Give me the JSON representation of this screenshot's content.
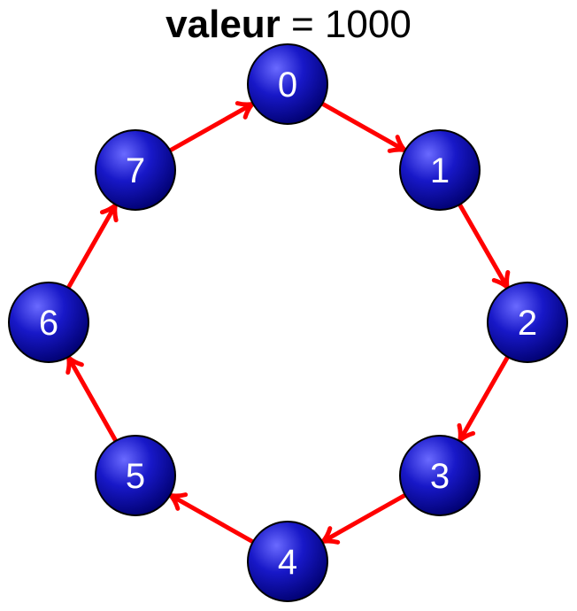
{
  "title": {
    "label": "valeur",
    "separator": " = ",
    "value": "1000"
  },
  "nodes": [
    {
      "id": "node-0",
      "label": "0"
    },
    {
      "id": "node-1",
      "label": "1"
    },
    {
      "id": "node-2",
      "label": "2"
    },
    {
      "id": "node-3",
      "label": "3"
    },
    {
      "id": "node-4",
      "label": "4"
    },
    {
      "id": "node-5",
      "label": "5"
    },
    {
      "id": "node-6",
      "label": "6"
    },
    {
      "id": "node-7",
      "label": "7"
    }
  ],
  "edges": [
    {
      "from": "0",
      "to": "1"
    },
    {
      "from": "1",
      "to": "2"
    },
    {
      "from": "2",
      "to": "3"
    },
    {
      "from": "3",
      "to": "4"
    },
    {
      "from": "4",
      "to": "5"
    },
    {
      "from": "5",
      "to": "6"
    },
    {
      "from": "6",
      "to": "7"
    },
    {
      "from": "7",
      "to": "0"
    }
  ],
  "colors": {
    "arrow": "#ff0000",
    "node_light": "#6a6aff",
    "node_mid": "#1818c8",
    "node_dark": "#00006e",
    "node_outline": "#000000",
    "label": "#ffffff"
  }
}
